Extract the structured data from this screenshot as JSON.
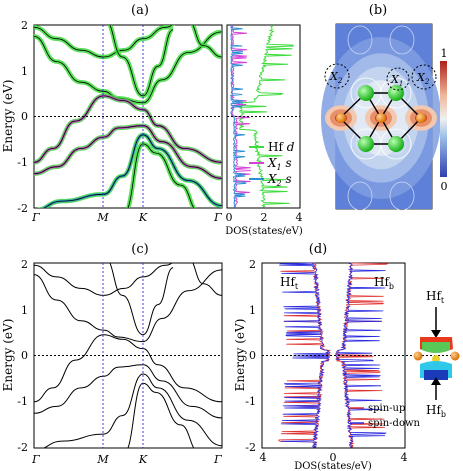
{
  "panels": {
    "a": "(a)",
    "b": "(b)",
    "c": "(c)",
    "d": "(d)"
  },
  "colors": {
    "hf_d": "#3ddc3d",
    "x1_s": "#d642d6",
    "x2_s": "#2b8fd6",
    "spin_up": "#e03030",
    "spin_down": "#2a2ae0",
    "kline": "#2a2ad0"
  },
  "chart_data": [
    {
      "type": "line",
      "panel": "(a)",
      "ylabel": "Energy (eV)",
      "ylim": [
        -2,
        2
      ],
      "yticks": [
        "2",
        "1",
        "0",
        "-1",
        "-2"
      ],
      "xticks": [
        "Γ",
        "M",
        "K",
        "Γ"
      ],
      "fermi_level": 0,
      "bands_sampled": [
        {
          "x": [
            "Γ",
            "M",
            "K",
            "Γ"
          ],
          "values": [
            1.92,
            1.35,
            1.6,
            1.92
          ]
        },
        {
          "x": [
            "Γ",
            "M",
            "K",
            "Γ"
          ],
          "values": [
            1.7,
            0.62,
            0.25,
            1.5
          ]
        },
        {
          "x": [
            "Γ",
            "M",
            "K",
            "Γ"
          ],
          "values": [
            -1.0,
            0.5,
            0.35,
            -1.0
          ]
        },
        {
          "x": [
            "Γ",
            "M",
            "K",
            "Γ"
          ],
          "values": [
            -1.2,
            -0.45,
            -0.2,
            -1.3
          ]
        },
        {
          "x": [
            "Γ",
            "M",
            "K",
            "Γ"
          ],
          "values": [
            -2.0,
            -1.7,
            -0.9,
            -2.0
          ]
        }
      ]
    },
    {
      "type": "line",
      "panel": "(a) DOS",
      "xlabel": "DOS(states/eV)",
      "xticks": [
        "0",
        "2",
        "4"
      ],
      "series": [
        {
          "name": "Hf d"
        },
        {
          "name": "X1 s"
        },
        {
          "name": "X2 s"
        }
      ]
    },
    {
      "type": "heatmap",
      "panel": "(b)",
      "colorbar": {
        "max": "1",
        "min": "0"
      },
      "site_labels": [
        "X2",
        "X1",
        "X2"
      ]
    },
    {
      "type": "line",
      "panel": "(c)",
      "ylabel": "Energy (eV)",
      "ylim": [
        -2,
        2
      ],
      "yticks": [
        "2",
        "1",
        "0",
        "-1",
        "-2"
      ],
      "xticks": [
        "Γ",
        "M",
        "K",
        "Γ"
      ]
    },
    {
      "type": "line",
      "panel": "(d)",
      "ylabel": "Energy (eV)",
      "xlabel": "DOS(states/eV)",
      "ylim": [
        -2,
        2
      ],
      "yticks": [
        "2",
        "1",
        "0",
        "-1",
        "-2"
      ],
      "xticks": [
        "4",
        "0",
        "4"
      ],
      "top_labels": [
        "Hft",
        "Hfb"
      ],
      "series": [
        {
          "name": "spin-up"
        },
        {
          "name": "spin-down"
        }
      ],
      "structure_labels": [
        "Hft",
        "Hfb"
      ]
    }
  ],
  "text": {
    "energy": "Energy (eV)",
    "dos": "DOS(states/eV)",
    "gamma": "Γ",
    "M": "M",
    "K": "K",
    "y2": "2",
    "y1": "1",
    "y0": "0",
    "ym1": "-1",
    "ym2": "-2",
    "d0": "0",
    "d2": "2",
    "d4": "4",
    "leg_hf": "Hf d",
    "leg_x1": "X1 s",
    "leg_x2": "X2 s",
    "cb1": "1",
    "cb0": "0",
    "x2": "X2",
    "x1": "X1",
    "hf": "Hf",
    "t": "t",
    "b": "b",
    "spinup": "spin-up",
    "spindown": "spin-down"
  }
}
